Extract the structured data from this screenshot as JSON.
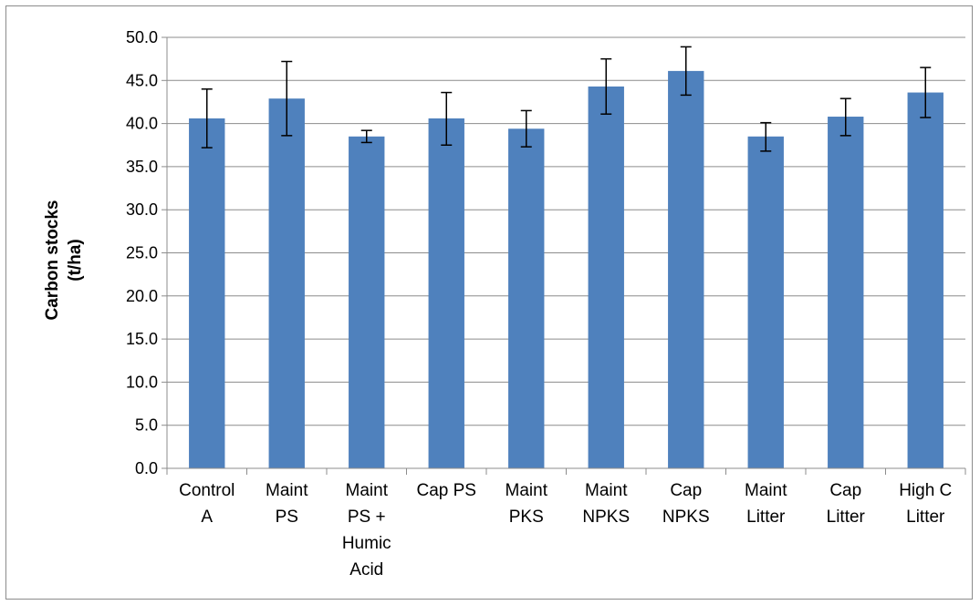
{
  "chart_data": {
    "type": "bar",
    "title": "",
    "xlabel": "",
    "ylabel_lines": [
      "Carbon stocks",
      "(t/ha)"
    ],
    "ylim": [
      0,
      50
    ],
    "ytick_step": 5,
    "ytick_labels": [
      "0.0",
      "5.0",
      "10.0",
      "15.0",
      "20.0",
      "25.0",
      "30.0",
      "35.0",
      "40.0",
      "45.0",
      "50.0"
    ],
    "grid": true,
    "legend": "none",
    "bar_color": "#4f81bd",
    "categories": [
      [
        "Control",
        "A"
      ],
      [
        "Maint",
        "PS"
      ],
      [
        "Maint",
        "PS +",
        "Humic",
        "Acid"
      ],
      [
        "Cap PS"
      ],
      [
        "Maint",
        "PKS"
      ],
      [
        "Maint",
        "NPKS"
      ],
      [
        "Cap",
        "NPKS"
      ],
      [
        "Maint",
        "Litter"
      ],
      [
        "Cap",
        "Litter"
      ],
      [
        "High C",
        "Litter"
      ]
    ],
    "values": [
      40.6,
      42.9,
      38.5,
      40.6,
      39.4,
      44.3,
      46.1,
      38.5,
      40.8,
      43.6
    ],
    "error_low": [
      37.2,
      38.6,
      37.8,
      37.5,
      37.3,
      41.1,
      43.3,
      36.8,
      38.6,
      40.7
    ],
    "error_high": [
      44.0,
      47.2,
      39.2,
      43.6,
      41.5,
      47.5,
      48.9,
      40.1,
      42.9,
      46.5
    ]
  }
}
